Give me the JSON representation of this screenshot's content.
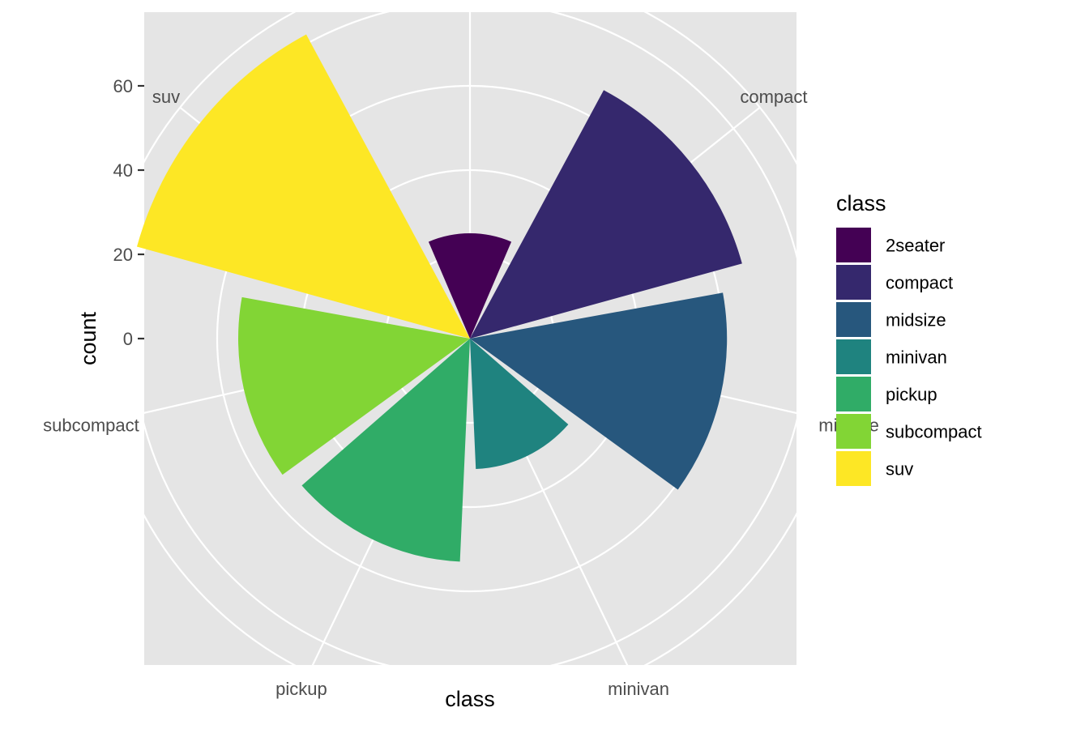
{
  "chart_data": {
    "type": "bar",
    "coord": "polar",
    "xlabel": "class",
    "ylabel": "count",
    "categories": [
      "2seater",
      "compact",
      "midsize",
      "minivan",
      "pickup",
      "subcompact",
      "suv"
    ],
    "values": [
      5,
      47,
      41,
      11,
      33,
      35,
      62
    ],
    "colors": [
      "#440154",
      "#35286D",
      "#27577D",
      "#1F837F",
      "#30AC67",
      "#82D535",
      "#FDE725"
    ],
    "yticks": [
      0,
      20,
      40,
      60
    ],
    "ylim": [
      -20,
      68
    ],
    "legend": {
      "title": "class",
      "position": "right"
    },
    "background": "#E5E5E5",
    "grid_color": "#FFFFFF"
  }
}
